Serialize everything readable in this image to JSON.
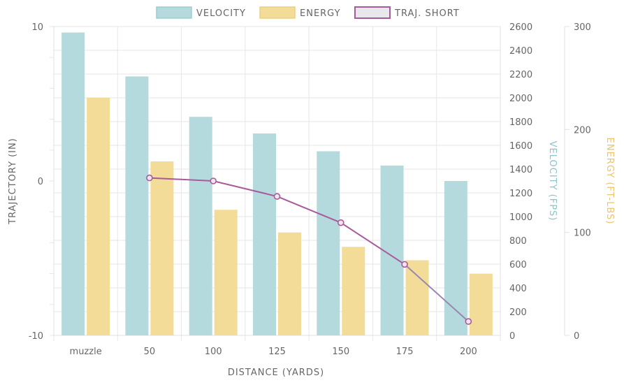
{
  "chart_data": {
    "type": "bar",
    "categories": [
      "muzzle",
      "50",
      "100",
      "125",
      "150",
      "175",
      "200"
    ],
    "series": [
      {
        "name": "VELOCITY",
        "type": "bar",
        "axis": "velocity",
        "color": "#b5dade",
        "values": [
          2550,
          2180,
          1840,
          1700,
          1550,
          1430,
          1300
        ]
      },
      {
        "name": "ENERGY",
        "type": "bar",
        "axis": "energy",
        "color": "#f3dc98",
        "values": [
          231,
          169,
          122,
          100,
          86,
          73,
          60
        ]
      },
      {
        "name": "TRAJ. SHORT",
        "type": "line",
        "axis": "trajectory",
        "color": "#a85a9a",
        "values": [
          null,
          0.2,
          0,
          -1,
          -2.7,
          -5.4,
          -9.1
        ]
      }
    ],
    "xlabel": "DISTANCE (YARDS)",
    "axes": {
      "trajectory": {
        "label": "TRAJECTORY (IN)",
        "min": -10,
        "max": 10,
        "ticks": [
          "10",
          "0",
          "-10"
        ],
        "position": "left",
        "color": "#666666"
      },
      "velocity": {
        "label": "VELOCITY (FPS)",
        "min": 0,
        "max": 2600,
        "ticks": [
          "2600",
          "2400",
          "2200",
          "2000",
          "1800",
          "1600",
          "1400",
          "1200",
          "1000",
          "800",
          "600",
          "400",
          "200",
          "0"
        ],
        "position": "right",
        "color": "#8cc3c8"
      },
      "energy": {
        "label": "ENERGY (FT-LBS)",
        "min": 0,
        "max": 300,
        "ticks": [
          "300",
          "200",
          "100",
          "0"
        ],
        "position": "right",
        "color": "#e9c46a"
      }
    },
    "legend": "top",
    "grid": true
  }
}
